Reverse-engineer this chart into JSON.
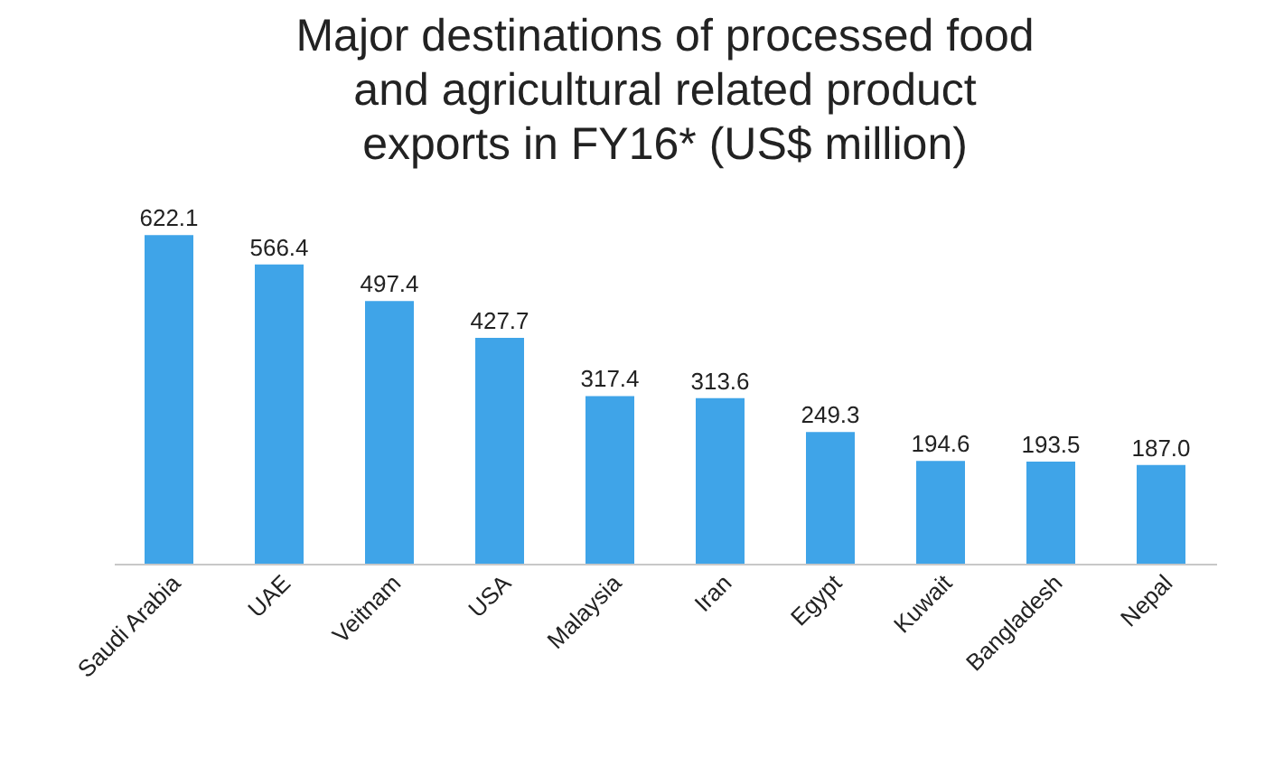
{
  "chart_data": {
    "type": "bar",
    "title": "Major destinations of processed  food\nand agricultural related product\nexports in FY16* (US$ million)",
    "categories": [
      "Saudi Arabia",
      "UAE",
      "Veitnam",
      "USA",
      "Malaysia",
      "Iran",
      "Egypt",
      "Kuwait",
      "Bangladesh",
      "Nepal"
    ],
    "values": [
      622.1,
      566.4,
      497.4,
      427.7,
      317.4,
      313.6,
      249.3,
      194.6,
      193.5,
      187.0
    ],
    "value_labels": [
      "622.1",
      "566.4",
      "497.4",
      "427.7",
      "317.4",
      "313.6",
      "249.3",
      "194.6",
      "193.5",
      "187.0"
    ],
    "color": "#3fa4e8",
    "grid": false
  }
}
